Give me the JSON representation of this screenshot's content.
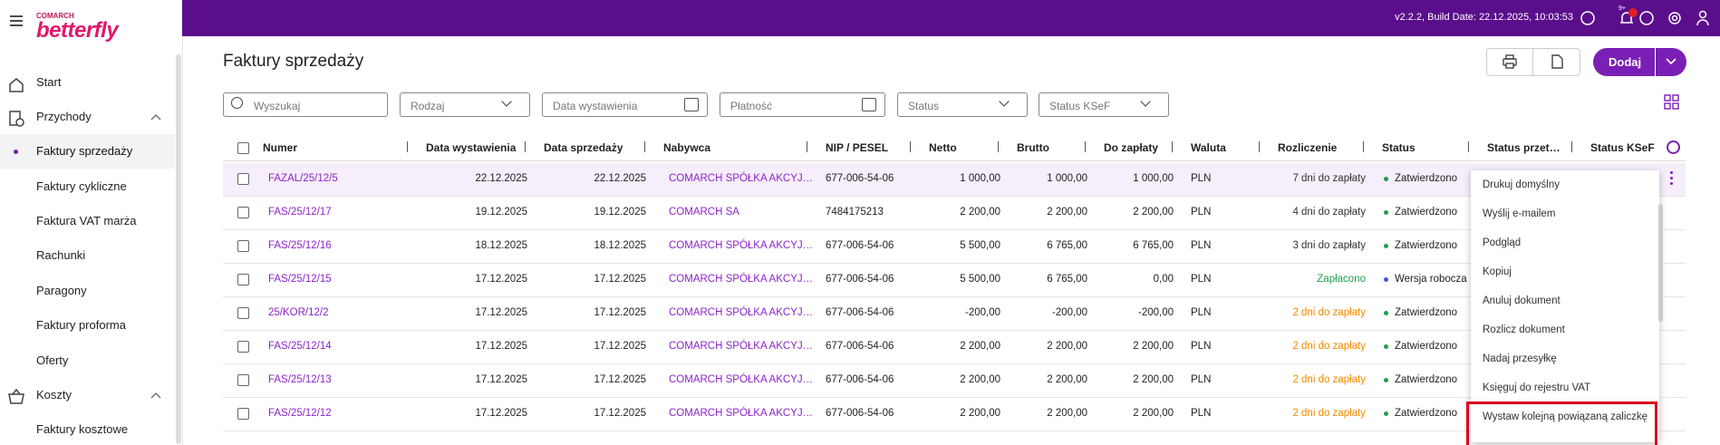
{
  "header": {
    "brand_top": "COMARCH",
    "brand": "betterfly",
    "build": "v2.2.2, Build Date: 22.12.2025, 10:03:53",
    "badge": "9+"
  },
  "sidebar": {
    "items": [
      {
        "label": "Start",
        "level": 0
      },
      {
        "label": "Przychody",
        "level": 0
      },
      {
        "label": "Faktury sprzedaży",
        "level": 1,
        "active": true
      },
      {
        "label": "Faktury cykliczne",
        "level": 1
      },
      {
        "label": "Faktura VAT marża",
        "level": 1
      },
      {
        "label": "Rachunki",
        "level": 1
      },
      {
        "label": "Paragony",
        "level": 1
      },
      {
        "label": "Faktury proforma",
        "level": 1
      },
      {
        "label": "Oferty",
        "level": 1
      },
      {
        "label": "Koszty",
        "level": 0
      },
      {
        "label": "Faktury kosztowe",
        "level": 1
      }
    ]
  },
  "page": {
    "title": "Faktury sprzedaży",
    "add_button": "Dodaj"
  },
  "filters": [
    "Wyszukaj",
    "Rodzaj",
    "Data wystawienia",
    "Płatność",
    "Status",
    "Status KSeF"
  ],
  "table": {
    "columns": [
      "Numer",
      "Data wystawienia",
      "Data sprzedaży",
      "Nabywca",
      "NIP / PESEL",
      "Netto",
      "Brutto",
      "Do zapłaty",
      "Waluta",
      "Rozliczenie",
      "Status",
      "Status przet…",
      "Status KSeF"
    ],
    "rows": [
      [
        "FAZAL/25/12/5",
        "22.12.2025",
        "22.12.2025",
        "COMARCH SPÓŁKA AKCYJ…",
        "677-006-54-06",
        "1 000,00",
        "1 000,00",
        "1 000,00",
        "PLN",
        "7 dni do zapłaty",
        "Zatwierdzono"
      ],
      [
        "FAS/25/12/17",
        "19.12.2025",
        "19.12.2025",
        "COMARCH SA",
        "7484175213",
        "2 200,00",
        "2 200,00",
        "2 200,00",
        "PLN",
        "4 dni do zapłaty",
        "Zatwierdzono"
      ],
      [
        "FAS/25/12/16",
        "18.12.2025",
        "18.12.2025",
        "COMARCH SPÓŁKA AKCYJ…",
        "677-006-54-06",
        "5 500,00",
        "6 765,00",
        "6 765,00",
        "PLN",
        "3 dni do zapłaty",
        "Zatwierdzono"
      ],
      [
        "FAS/25/12/15",
        "17.12.2025",
        "17.12.2025",
        "COMARCH SPÓŁKA AKCYJ…",
        "677-006-54-06",
        "5 500,00",
        "6 765,00",
        "0,00",
        "PLN",
        "Zapłacono",
        "Wersja robocza"
      ],
      [
        "25/KOR/12/2",
        "17.12.2025",
        "17.12.2025",
        "COMARCH SPÓŁKA AKCYJ…",
        "677-006-54-06",
        "-200,00",
        "-200,00",
        "-200,00",
        "PLN",
        "2 dni do zapłaty",
        "Zatwierdzono"
      ],
      [
        "FAS/25/12/14",
        "17.12.2025",
        "17.12.2025",
        "COMARCH SPÓŁKA AKCYJ…",
        "677-006-54-06",
        "2 200,00",
        "2 200,00",
        "2 200,00",
        "PLN",
        "2 dni do zapłaty",
        "Zatwierdzono"
      ],
      [
        "FAS/25/12/13",
        "17.12.2025",
        "17.12.2025",
        "COMARCH SPÓŁKA AKCYJ…",
        "677-006-54-06",
        "2 200,00",
        "2 200,00",
        "2 200,00",
        "PLN",
        "2 dni do zapłaty",
        "Zatwierdzono"
      ],
      [
        "FAS/25/12/12",
        "17.12.2025",
        "17.12.2025",
        "COMARCH SPÓŁKA AKCYJ…",
        "677-006-54-06",
        "2 200,00",
        "2 200,00",
        "2 200,00",
        "PLN",
        "2 dni do zapłaty",
        "Zatwierdzono"
      ]
    ],
    "settlement_colors": [
      "#333333",
      "#333333",
      "#333333",
      "#1e9e4a",
      "#f08a00",
      "#f08a00",
      "#f08a00",
      "#f08a00"
    ],
    "status_colors": [
      "#1e9e4a",
      "#1e9e4a",
      "#1e9e4a",
      "#3a5bd9",
      "#1e9e4a",
      "#1e9e4a",
      "#1e9e4a",
      "#1e9e4a"
    ]
  },
  "menu": {
    "items": [
      "Drukuj domyślny",
      "Wyślij e-mailem",
      "Podgląd",
      "Kopiuj",
      "Anuluj dokument",
      "Rozlicz dokument",
      "Nadaj przesyłkę",
      "Księguj do rejestru VAT",
      "Wystaw kolejną powiązaną zaliczkę"
    ],
    "highlighted": 8
  }
}
